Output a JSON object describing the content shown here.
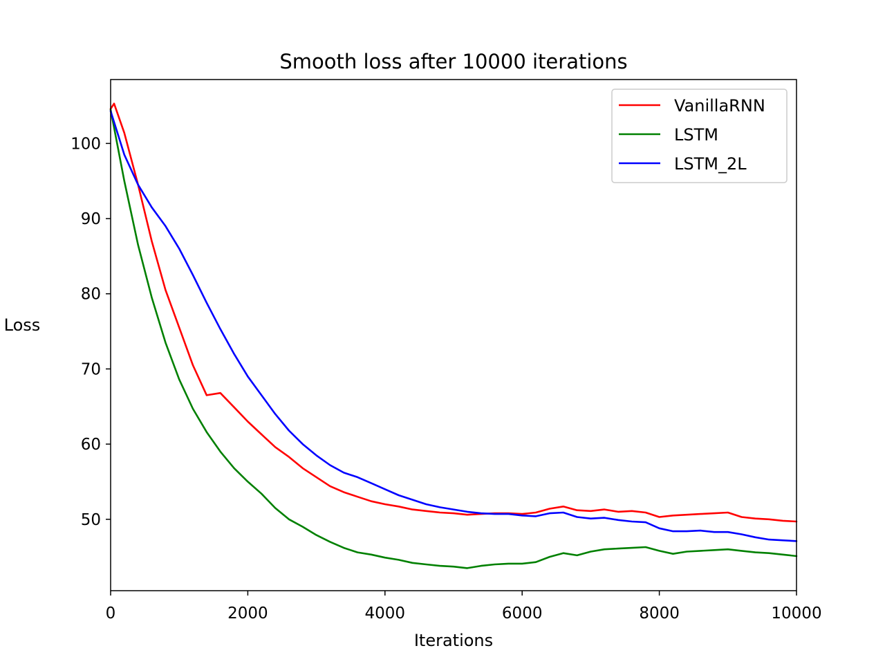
{
  "chart_data": {
    "type": "line",
    "title": "Smooth loss after 10000 iterations",
    "xlabel": "Iterations",
    "ylabel": "Loss",
    "xlim": [
      0,
      10000
    ],
    "ylim": [
      40.5,
      108.5
    ],
    "xticks": [
      0,
      2000,
      4000,
      6000,
      8000,
      10000
    ],
    "yticks": [
      50,
      60,
      70,
      80,
      90,
      100
    ],
    "grid": false,
    "legend_position": "top-right",
    "series": [
      {
        "name": "VanillaRNN",
        "color": "#ff0000",
        "x": [
          0,
          50,
          200,
          400,
          600,
          800,
          1000,
          1200,
          1400,
          1600,
          1800,
          2000,
          2200,
          2400,
          2600,
          2800,
          3000,
          3200,
          3400,
          3600,
          3800,
          4000,
          4200,
          4400,
          4600,
          4800,
          5000,
          5200,
          5400,
          5600,
          5800,
          6000,
          6200,
          6400,
          6600,
          6800,
          7000,
          7200,
          7400,
          7600,
          7800,
          8000,
          8200,
          8400,
          8600,
          8800,
          9000,
          9200,
          9400,
          9600,
          9800,
          10000
        ],
        "y": [
          104.6,
          105.3,
          101.4,
          94.5,
          87.0,
          80.5,
          75.5,
          70.5,
          66.5,
          66.8,
          64.9,
          63.0,
          61.3,
          59.6,
          58.3,
          56.8,
          55.6,
          54.4,
          53.6,
          53.0,
          52.4,
          52.0,
          51.7,
          51.3,
          51.1,
          50.9,
          50.8,
          50.6,
          50.7,
          50.8,
          50.8,
          50.7,
          50.9,
          51.4,
          51.7,
          51.2,
          51.1,
          51.3,
          51.0,
          51.1,
          50.9,
          50.3,
          50.5,
          50.6,
          50.7,
          50.8,
          50.9,
          50.3,
          50.1,
          50.0,
          49.8,
          49.7
        ]
      },
      {
        "name": "LSTM",
        "color": "#008000",
        "x": [
          0,
          200,
          400,
          600,
          800,
          1000,
          1200,
          1400,
          1600,
          1800,
          2000,
          2200,
          2400,
          2600,
          2800,
          3000,
          3200,
          3400,
          3600,
          3800,
          4000,
          4200,
          4400,
          4600,
          4800,
          5000,
          5200,
          5400,
          5600,
          5800,
          6000,
          6200,
          6400,
          6600,
          6800,
          7000,
          7200,
          7400,
          7600,
          7800,
          8000,
          8200,
          8400,
          8600,
          8800,
          9000,
          9200,
          9400,
          9600,
          9800,
          10000
        ],
        "y": [
          104.5,
          95.0,
          86.5,
          79.5,
          73.5,
          68.6,
          64.7,
          61.6,
          59.0,
          56.8,
          55.0,
          53.4,
          51.5,
          50.0,
          49.0,
          47.9,
          47.0,
          46.2,
          45.6,
          45.3,
          44.9,
          44.6,
          44.2,
          44.0,
          43.8,
          43.7,
          43.5,
          43.8,
          44.0,
          44.1,
          44.1,
          44.3,
          45.0,
          45.5,
          45.2,
          45.7,
          46.0,
          46.1,
          46.2,
          46.3,
          45.8,
          45.4,
          45.7,
          45.8,
          45.9,
          46.0,
          45.8,
          45.6,
          45.5,
          45.3,
          45.1
        ]
      },
      {
        "name": "LSTM_2L",
        "color": "#0000ff",
        "x": [
          0,
          200,
          400,
          600,
          800,
          1000,
          1200,
          1400,
          1600,
          1800,
          2000,
          2200,
          2400,
          2600,
          2800,
          3000,
          3200,
          3400,
          3600,
          3800,
          4000,
          4200,
          4400,
          4600,
          4800,
          5000,
          5200,
          5400,
          5600,
          5800,
          6000,
          6200,
          6400,
          6600,
          6800,
          7000,
          7200,
          7400,
          7600,
          7800,
          8000,
          8200,
          8400,
          8600,
          8800,
          9000,
          9200,
          9400,
          9600,
          9800,
          10000
        ],
        "y": [
          104.3,
          98.5,
          94.5,
          91.5,
          89.0,
          86.0,
          82.5,
          78.8,
          75.3,
          72.0,
          69.0,
          66.5,
          64.0,
          61.8,
          60.0,
          58.5,
          57.2,
          56.2,
          55.6,
          54.8,
          54.0,
          53.2,
          52.6,
          52.0,
          51.6,
          51.3,
          51.0,
          50.8,
          50.7,
          50.7,
          50.5,
          50.4,
          50.8,
          50.9,
          50.3,
          50.1,
          50.2,
          49.9,
          49.7,
          49.6,
          48.8,
          48.4,
          48.4,
          48.5,
          48.3,
          48.3,
          48.0,
          47.6,
          47.3,
          47.2,
          47.1
        ]
      }
    ]
  }
}
